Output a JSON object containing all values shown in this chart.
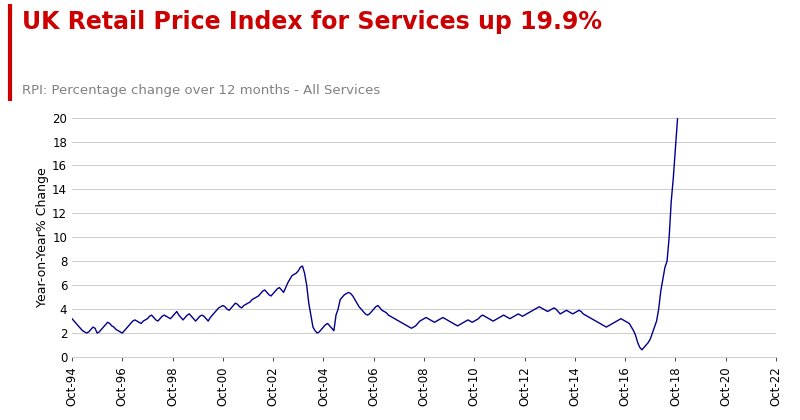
{
  "title": "UK Retail Price Index for Services up 19.9%",
  "subtitle": "RPI: Percentage change over 12 months - All Services",
  "title_color": "#cc0000",
  "subtitle_color": "#808080",
  "line_color": "#00008B",
  "background_color": "#ffffff",
  "ylabel": "Year-on-Year% Change",
  "ylim": [
    0,
    20
  ],
  "yticks": [
    0,
    2,
    4,
    6,
    8,
    10,
    12,
    14,
    16,
    18,
    20
  ],
  "xtick_labels": [
    "Oct-94",
    "Oct-96",
    "Oct-98",
    "Oct-00",
    "Oct-02",
    "Oct-04",
    "Oct-06",
    "Oct-08",
    "Oct-10",
    "Oct-12",
    "Oct-14",
    "Oct-16",
    "Oct-18",
    "Oct-20",
    "Oct-22"
  ],
  "values": [
    3.2,
    3.0,
    2.8,
    2.6,
    2.4,
    2.2,
    2.1,
    2.0,
    2.1,
    2.3,
    2.5,
    2.4,
    2.0,
    2.1,
    2.3,
    2.5,
    2.7,
    2.9,
    2.8,
    2.6,
    2.5,
    2.3,
    2.2,
    2.1,
    2.0,
    2.2,
    2.4,
    2.6,
    2.8,
    3.0,
    3.1,
    3.0,
    2.9,
    2.8,
    3.0,
    3.1,
    3.2,
    3.4,
    3.5,
    3.3,
    3.1,
    3.0,
    3.2,
    3.4,
    3.5,
    3.4,
    3.3,
    3.2,
    3.4,
    3.6,
    3.8,
    3.5,
    3.3,
    3.1,
    3.3,
    3.5,
    3.6,
    3.4,
    3.2,
    3.0,
    3.2,
    3.4,
    3.5,
    3.4,
    3.2,
    3.0,
    3.3,
    3.5,
    3.7,
    3.9,
    4.1,
    4.2,
    4.3,
    4.2,
    4.0,
    3.9,
    4.1,
    4.3,
    4.5,
    4.4,
    4.2,
    4.1,
    4.3,
    4.4,
    4.5,
    4.6,
    4.8,
    4.9,
    5.0,
    5.1,
    5.3,
    5.5,
    5.6,
    5.4,
    5.2,
    5.1,
    5.3,
    5.5,
    5.7,
    5.8,
    5.6,
    5.4,
    5.8,
    6.2,
    6.5,
    6.8,
    6.9,
    7.0,
    7.2,
    7.5,
    7.6,
    7.0,
    6.0,
    4.5,
    3.5,
    2.5,
    2.2,
    2.0,
    2.1,
    2.3,
    2.5,
    2.7,
    2.8,
    2.6,
    2.4,
    2.2,
    3.5,
    4.0,
    4.8,
    5.0,
    5.2,
    5.3,
    5.4,
    5.3,
    5.1,
    4.8,
    4.5,
    4.2,
    4.0,
    3.8,
    3.6,
    3.5,
    3.6,
    3.8,
    4.0,
    4.2,
    4.3,
    4.1,
    3.9,
    3.8,
    3.7,
    3.5,
    3.4,
    3.3,
    3.2,
    3.1,
    3.0,
    2.9,
    2.8,
    2.7,
    2.6,
    2.5,
    2.4,
    2.5,
    2.6,
    2.8,
    3.0,
    3.1,
    3.2,
    3.3,
    3.2,
    3.1,
    3.0,
    2.9,
    3.0,
    3.1,
    3.2,
    3.3,
    3.2,
    3.1,
    3.0,
    2.9,
    2.8,
    2.7,
    2.6,
    2.7,
    2.8,
    2.9,
    3.0,
    3.1,
    3.0,
    2.9,
    3.0,
    3.1,
    3.2,
    3.4,
    3.5,
    3.4,
    3.3,
    3.2,
    3.1,
    3.0,
    3.1,
    3.2,
    3.3,
    3.4,
    3.5,
    3.4,
    3.3,
    3.2,
    3.3,
    3.4,
    3.5,
    3.6,
    3.5,
    3.4,
    3.5,
    3.6,
    3.7,
    3.8,
    3.9,
    4.0,
    4.1,
    4.2,
    4.1,
    4.0,
    3.9,
    3.8,
    3.9,
    4.0,
    4.1,
    4.0,
    3.8,
    3.6,
    3.7,
    3.8,
    3.9,
    3.8,
    3.7,
    3.6,
    3.7,
    3.8,
    3.9,
    3.8,
    3.6,
    3.5,
    3.4,
    3.3,
    3.2,
    3.1,
    3.0,
    2.9,
    2.8,
    2.7,
    2.6,
    2.5,
    2.6,
    2.7,
    2.8,
    2.9,
    3.0,
    3.1,
    3.2,
    3.1,
    3.0,
    2.9,
    2.8,
    2.5,
    2.2,
    1.8,
    1.2,
    0.8,
    0.6,
    0.8,
    1.0,
    1.2,
    1.5,
    2.0,
    2.5,
    3.0,
    4.0,
    5.5,
    6.5,
    7.5,
    8.0,
    10.0,
    13.0,
    15.0,
    17.5,
    19.9
  ],
  "grid_color": "#cccccc",
  "left_bar_color": "#cc0000",
  "left_bar_width": 3,
  "title_fontsize": 17,
  "subtitle_fontsize": 9.5,
  "ylabel_fontsize": 9,
  "tick_fontsize": 8.5
}
